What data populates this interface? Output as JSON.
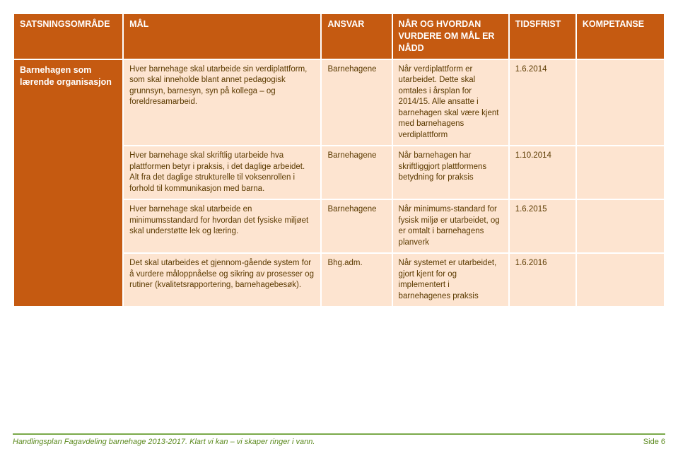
{
  "headers": {
    "area": "SATSNINGSOMRÅDE",
    "goal": "MÅL",
    "responsible": "ANSVAR",
    "when": "NÅR OG HVORDAN VURDERE OM MÅL ER NÅDD",
    "deadline": "TIDSFRIST",
    "competence": "KOMPETANSE"
  },
  "area_label": "Barnehagen som lærende organisasjon",
  "rows": [
    {
      "goal": "Hver barnehage skal utarbeide sin verdiplattform, som skal inneholde blant annet pedagogisk grunnsyn, barnesyn, syn på kollega – og foreldresamarbeid.",
      "responsible": "Barnehagene",
      "when": "Når verdiplattform er utarbeidet. Dette skal omtales i årsplan for 2014/15. Alle ansatte i barnehagen skal være kjent med barnehagens verdiplattform",
      "deadline": "1.6.2014",
      "competence": ""
    },
    {
      "goal": "Hver barnehage skal skriftlig utarbeide hva plattformen betyr i praksis, i det daglige arbeidet. Alt fra det daglige strukturelle til voksenrollen i forhold til kommunikasjon med barna.",
      "responsible": "Barnehagene",
      "when": "Når barnehagen har skriftliggjort plattformens betydning for praksis",
      "deadline": "1.10.2014",
      "competence": ""
    },
    {
      "goal": "Hver barnehage skal utarbeide en minimumsstandard for hvordan det fysiske miljøet skal understøtte lek og læring.",
      "responsible": "Barnehagene",
      "when": "Når minimums-standard for fysisk miljø er utarbeidet, og er omtalt i barnehagens planverk",
      "deadline": "1.6.2015",
      "competence": ""
    },
    {
      "goal": "Det skal utarbeides et gjennom-gående system for å vurdere måloppnåelse og sikring av prosesser og rutiner (kvalitetsrapportering, barnehagebesøk).",
      "responsible": "Bhg.adm.",
      "when": "Når systemet er utarbeidet, gjort kjent for og implementert i barnehagenes praksis",
      "deadline": "1.6.2016",
      "competence": ""
    }
  ],
  "footer": {
    "left": "Handlingsplan Fagavdeling barnehage 2013-2017. Klart vi kan – vi skaper ringer i vann.",
    "right": "Side 6"
  }
}
